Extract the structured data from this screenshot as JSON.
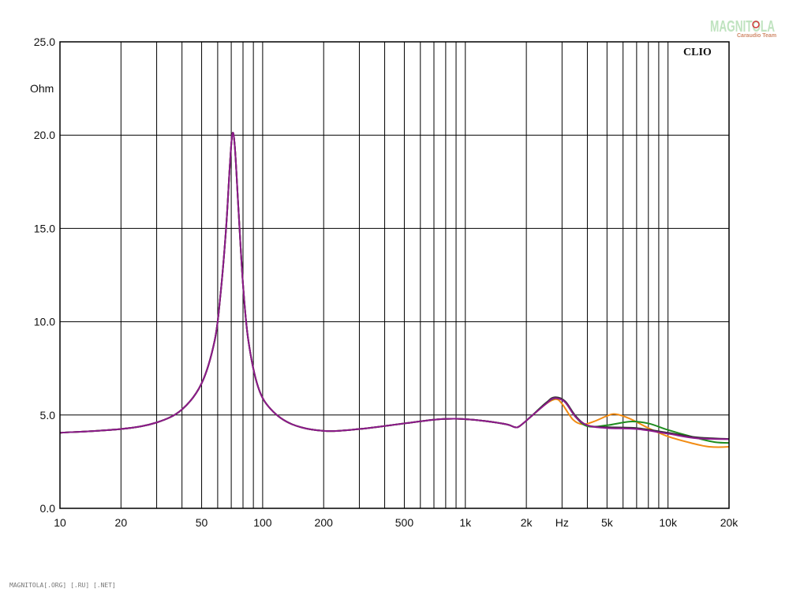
{
  "chart_data": {
    "type": "line",
    "brand": "CLIO",
    "xscale": "log",
    "xlim": [
      10,
      20000
    ],
    "ylim": [
      0,
      25
    ],
    "yunit_label": "Ohm",
    "xunit_label": "Hz",
    "grid": true,
    "xticks": [
      10,
      20,
      50,
      100,
      200,
      500,
      1000,
      2000,
      5000,
      10000,
      20000
    ],
    "xtick_labels": [
      "10",
      "20",
      "50",
      "100",
      "200",
      "500",
      "1k",
      "2k",
      "5k",
      "10k",
      "20k"
    ],
    "yticks": [
      0,
      5,
      10,
      15,
      20,
      25
    ],
    "ytick_labels": [
      "0.0",
      "5.0",
      "10.0",
      "15.0",
      "20.0",
      "25.0"
    ],
    "series": [
      {
        "color": "#f28c14",
        "points": [
          [
            10,
            4.05
          ],
          [
            20,
            4.25
          ],
          [
            30,
            4.6
          ],
          [
            40,
            5.3
          ],
          [
            50,
            6.7
          ],
          [
            58,
            9.0
          ],
          [
            62,
            11.5
          ],
          [
            66,
            15.0
          ],
          [
            69,
            18.5
          ],
          [
            71,
            20.1
          ],
          [
            73,
            19.3
          ],
          [
            76,
            16.0
          ],
          [
            80,
            12.0
          ],
          [
            85,
            9.0
          ],
          [
            95,
            6.5
          ],
          [
            110,
            5.3
          ],
          [
            140,
            4.5
          ],
          [
            200,
            4.15
          ],
          [
            300,
            4.25
          ],
          [
            500,
            4.55
          ],
          [
            700,
            4.75
          ],
          [
            900,
            4.8
          ],
          [
            1200,
            4.7
          ],
          [
            1600,
            4.5
          ],
          [
            1750,
            4.35
          ],
          [
            1850,
            4.4
          ],
          [
            2100,
            4.9
          ],
          [
            2500,
            5.6
          ],
          [
            2800,
            5.85
          ],
          [
            3000,
            5.6
          ],
          [
            3400,
            4.75
          ],
          [
            3800,
            4.5
          ],
          [
            4300,
            4.65
          ],
          [
            5000,
            4.95
          ],
          [
            5500,
            5.05
          ],
          [
            6500,
            4.8
          ],
          [
            8000,
            4.3
          ],
          [
            10000,
            3.85
          ],
          [
            13000,
            3.5
          ],
          [
            16000,
            3.3
          ],
          [
            20000,
            3.3
          ],
          [
            22000,
            3.4
          ]
        ]
      },
      {
        "color": "#1f8c1f",
        "points": [
          [
            10,
            4.05
          ],
          [
            20,
            4.25
          ],
          [
            30,
            4.6
          ],
          [
            40,
            5.3
          ],
          [
            50,
            6.7
          ],
          [
            58,
            9.0
          ],
          [
            62,
            11.5
          ],
          [
            66,
            15.0
          ],
          [
            69,
            18.5
          ],
          [
            71,
            20.1
          ],
          [
            73,
            19.3
          ],
          [
            76,
            16.0
          ],
          [
            80,
            12.0
          ],
          [
            85,
            9.0
          ],
          [
            95,
            6.5
          ],
          [
            110,
            5.3
          ],
          [
            140,
            4.5
          ],
          [
            200,
            4.15
          ],
          [
            300,
            4.25
          ],
          [
            500,
            4.55
          ],
          [
            700,
            4.75
          ],
          [
            900,
            4.8
          ],
          [
            1200,
            4.7
          ],
          [
            1600,
            4.5
          ],
          [
            1750,
            4.35
          ],
          [
            1850,
            4.4
          ],
          [
            2100,
            4.9
          ],
          [
            2500,
            5.65
          ],
          [
            2800,
            5.9
          ],
          [
            3100,
            5.7
          ],
          [
            3500,
            4.9
          ],
          [
            4000,
            4.4
          ],
          [
            5000,
            4.45
          ],
          [
            6500,
            4.65
          ],
          [
            8000,
            4.55
          ],
          [
            10000,
            4.2
          ],
          [
            13000,
            3.85
          ],
          [
            17000,
            3.55
          ],
          [
            22000,
            3.5
          ]
        ]
      },
      {
        "color": "#333333",
        "points": [
          [
            10,
            4.05
          ],
          [
            20,
            4.25
          ],
          [
            30,
            4.6
          ],
          [
            40,
            5.3
          ],
          [
            50,
            6.7
          ],
          [
            58,
            9.0
          ],
          [
            62,
            11.5
          ],
          [
            66,
            15.0
          ],
          [
            69,
            18.5
          ],
          [
            71,
            20.1
          ],
          [
            73,
            19.3
          ],
          [
            76,
            16.0
          ],
          [
            80,
            12.0
          ],
          [
            85,
            9.0
          ],
          [
            95,
            6.5
          ],
          [
            110,
            5.3
          ],
          [
            140,
            4.5
          ],
          [
            200,
            4.15
          ],
          [
            300,
            4.25
          ],
          [
            500,
            4.55
          ],
          [
            700,
            4.75
          ],
          [
            900,
            4.8
          ],
          [
            1200,
            4.7
          ],
          [
            1600,
            4.5
          ],
          [
            1750,
            4.35
          ],
          [
            1850,
            4.4
          ],
          [
            2100,
            4.9
          ],
          [
            2500,
            5.65
          ],
          [
            2750,
            5.95
          ],
          [
            3100,
            5.75
          ],
          [
            3500,
            4.95
          ],
          [
            4000,
            4.45
          ],
          [
            5000,
            4.35
          ],
          [
            7000,
            4.3
          ],
          [
            10000,
            4.05
          ],
          [
            14000,
            3.8
          ],
          [
            22000,
            3.7
          ]
        ]
      },
      {
        "color": "#8c1a8c",
        "points": [
          [
            10,
            4.05
          ],
          [
            20,
            4.25
          ],
          [
            30,
            4.6
          ],
          [
            40,
            5.3
          ],
          [
            50,
            6.7
          ],
          [
            58,
            9.0
          ],
          [
            62,
            11.5
          ],
          [
            66,
            15.0
          ],
          [
            69,
            18.5
          ],
          [
            71,
            20.1
          ],
          [
            73,
            19.3
          ],
          [
            76,
            16.0
          ],
          [
            80,
            12.0
          ],
          [
            85,
            9.0
          ],
          [
            95,
            6.5
          ],
          [
            110,
            5.3
          ],
          [
            140,
            4.5
          ],
          [
            200,
            4.15
          ],
          [
            300,
            4.25
          ],
          [
            500,
            4.55
          ],
          [
            700,
            4.75
          ],
          [
            900,
            4.8
          ],
          [
            1200,
            4.7
          ],
          [
            1600,
            4.5
          ],
          [
            1750,
            4.35
          ],
          [
            1850,
            4.4
          ],
          [
            2100,
            4.9
          ],
          [
            2500,
            5.6
          ],
          [
            2750,
            5.9
          ],
          [
            3100,
            5.7
          ],
          [
            3500,
            4.9
          ],
          [
            4000,
            4.45
          ],
          [
            5000,
            4.3
          ],
          [
            7000,
            4.25
          ],
          [
            10000,
            4.0
          ],
          [
            14000,
            3.75
          ],
          [
            22000,
            3.7
          ]
        ]
      }
    ]
  },
  "watermark": {
    "title": "MAGNITOLA",
    "subtitle": "Caraudio Team"
  },
  "footer": "MAGNITOLA[.ORG] [.RU] [.NET]"
}
